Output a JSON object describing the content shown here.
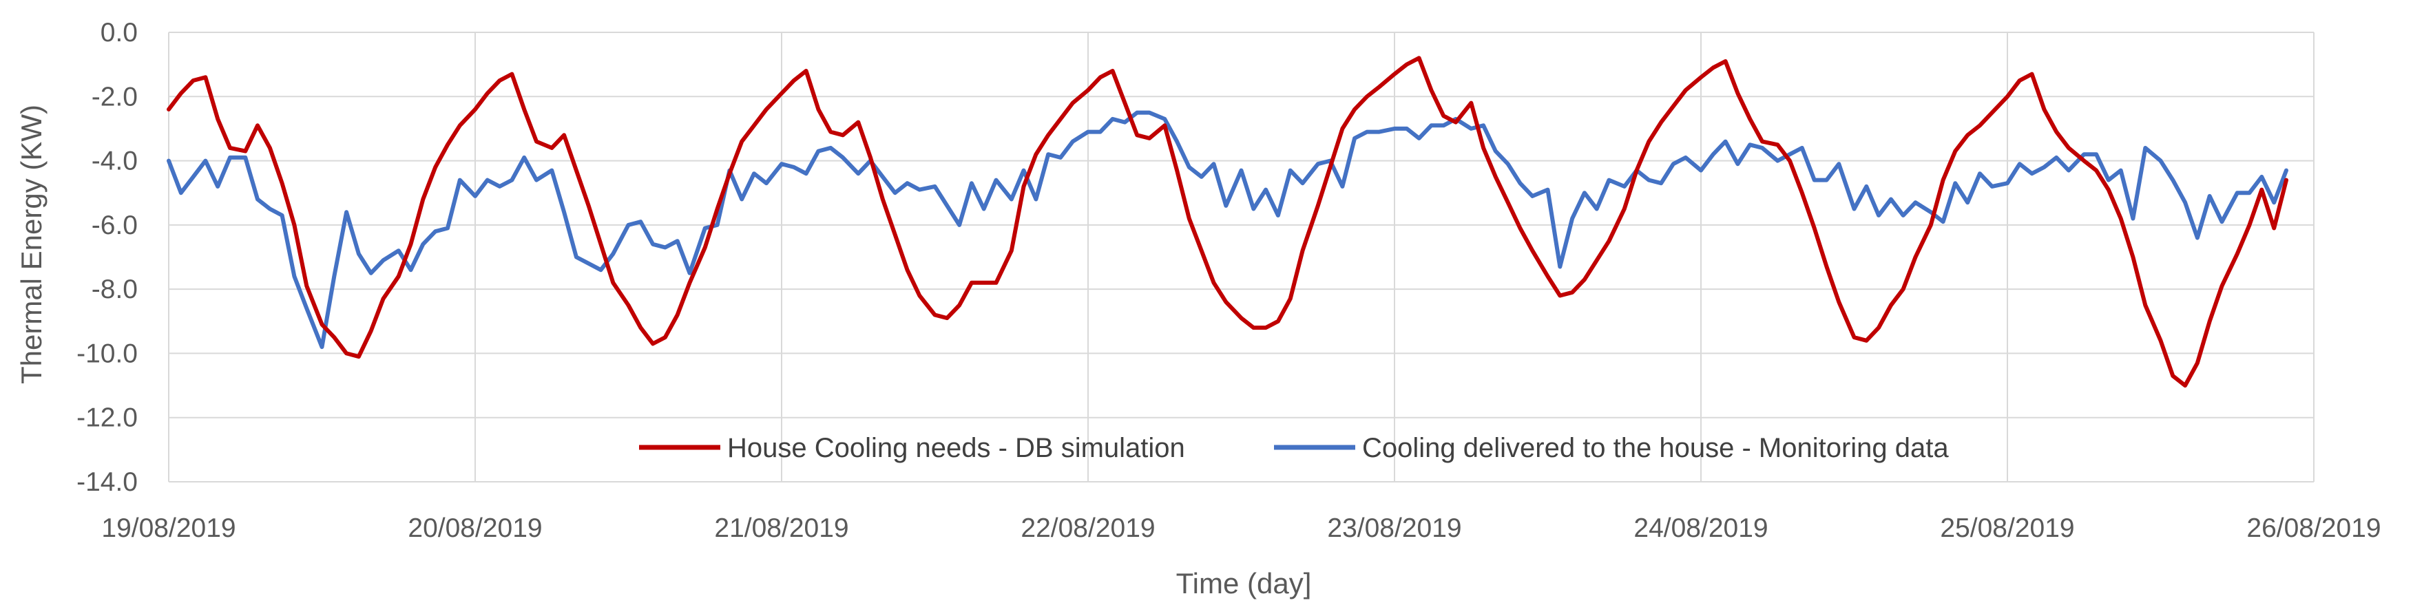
{
  "chart_data": {
    "type": "line",
    "title": "",
    "xlabel": "Time (day]",
    "ylabel": "Thermal Energy (KW)",
    "ylim": [
      -14.0,
      0.0
    ],
    "y_ticks": [
      "0.0",
      "-2.0",
      "-4.0",
      "-6.0",
      "-8.0",
      "-10.0",
      "-12.0",
      "-14.0"
    ],
    "y_tick_values": [
      0,
      -2,
      -4,
      -6,
      -8,
      -10,
      -12,
      -14
    ],
    "xlim": [
      0,
      7
    ],
    "x_tick_labels": [
      "19/08/2019",
      "20/08/2019",
      "21/08/2019",
      "22/08/2019",
      "23/08/2019",
      "24/08/2019",
      "25/08/2019",
      "26/08/2019"
    ],
    "x_tick_values": [
      0,
      1,
      2,
      3,
      4,
      5,
      6,
      7
    ],
    "grid": true,
    "legend_position": "bottom-center",
    "series": [
      {
        "name": "House Cooling needs - DB simulation",
        "color": "#C00000",
        "x": [
          0.0,
          0.04,
          0.08,
          0.12,
          0.16,
          0.2,
          0.25,
          0.29,
          0.33,
          0.37,
          0.41,
          0.45,
          0.5,
          0.54,
          0.58,
          0.62,
          0.66,
          0.7,
          0.75,
          0.79,
          0.83,
          0.87,
          0.91,
          0.95,
          1.0,
          1.04,
          1.08,
          1.12,
          1.16,
          1.2,
          1.25,
          1.29,
          1.33,
          1.37,
          1.41,
          1.45,
          1.5,
          1.54,
          1.58,
          1.62,
          1.66,
          1.7,
          1.75,
          1.79,
          1.83,
          1.87,
          1.91,
          1.95,
          2.0,
          2.04,
          2.08,
          2.12,
          2.16,
          2.2,
          2.25,
          2.29,
          2.33,
          2.37,
          2.41,
          2.45,
          2.5,
          2.54,
          2.58,
          2.62,
          2.66,
          2.7,
          2.75,
          2.79,
          2.83,
          2.87,
          2.91,
          2.95,
          3.0,
          3.04,
          3.08,
          3.12,
          3.16,
          3.2,
          3.25,
          3.29,
          3.33,
          3.37,
          3.41,
          3.45,
          3.5,
          3.54,
          3.58,
          3.62,
          3.66,
          3.7,
          3.75,
          3.79,
          3.83,
          3.87,
          3.91,
          3.95,
          4.0,
          4.04,
          4.08,
          4.12,
          4.16,
          4.2,
          4.25,
          4.29,
          4.33,
          4.37,
          4.41,
          4.45,
          4.5,
          4.54,
          4.58,
          4.62,
          4.66,
          4.7,
          4.75,
          4.79,
          4.83,
          4.87,
          4.91,
          4.95,
          5.0,
          5.04,
          5.08,
          5.12,
          5.16,
          5.2,
          5.25,
          5.29,
          5.33,
          5.37,
          5.41,
          5.45,
          5.5,
          5.54,
          5.58,
          5.62,
          5.66,
          5.7,
          5.75,
          5.79,
          5.83,
          5.87,
          5.91,
          5.95,
          6.0,
          6.04,
          6.08,
          6.12,
          6.16,
          6.2,
          6.25,
          6.29,
          6.33,
          6.37,
          6.41,
          6.45,
          6.5,
          6.54,
          6.58,
          6.62,
          6.66,
          6.7,
          6.75,
          6.79,
          6.83,
          6.87,
          6.91
        ],
        "values": [
          -2.4,
          -1.9,
          -1.5,
          -1.4,
          -2.7,
          -3.6,
          -3.7,
          -2.9,
          -3.6,
          -4.7,
          -6.0,
          -7.9,
          -9.1,
          -9.5,
          -10.0,
          -10.1,
          -9.3,
          -8.3,
          -7.6,
          -6.6,
          -5.2,
          -4.2,
          -3.5,
          -2.9,
          -2.4,
          -1.9,
          -1.5,
          -1.3,
          -2.4,
          -3.4,
          -3.6,
          -3.2,
          -4.3,
          -5.4,
          -6.6,
          -7.8,
          -8.5,
          -9.2,
          -9.7,
          -9.5,
          -8.8,
          -7.8,
          -6.7,
          -5.5,
          -4.4,
          -3.4,
          -2.9,
          -2.4,
          -1.9,
          -1.5,
          -1.2,
          -2.4,
          -3.1,
          -3.2,
          -2.8,
          -3.9,
          -5.2,
          -6.3,
          -7.4,
          -8.2,
          -8.8,
          -8.9,
          -8.5,
          -7.8,
          -7.8,
          -7.8,
          -6.8,
          -4.8,
          -3.8,
          -3.2,
          -2.7,
          -2.2,
          -1.8,
          -1.4,
          -1.2,
          -2.2,
          -3.2,
          -3.3,
          -2.9,
          -4.3,
          -5.8,
          -6.8,
          -7.8,
          -8.4,
          -8.9,
          -9.2,
          -9.2,
          -9.0,
          -8.3,
          -6.8,
          -5.4,
          -4.2,
          -3.0,
          -2.4,
          -2.0,
          -1.7,
          -1.3,
          -1.0,
          -0.8,
          -1.8,
          -2.6,
          -2.8,
          -2.2,
          -3.6,
          -4.5,
          -5.3,
          -6.1,
          -6.8,
          -7.6,
          -8.2,
          -8.1,
          -7.7,
          -7.1,
          -6.5,
          -5.5,
          -4.3,
          -3.4,
          -2.8,
          -2.3,
          -1.8,
          -1.4,
          -1.1,
          -0.9,
          -1.9,
          -2.7,
          -3.4,
          -3.5,
          -4.0,
          -5.0,
          -6.1,
          -7.3,
          -8.4,
          -9.5,
          -9.6,
          -9.2,
          -8.5,
          -8.0,
          -7.0,
          -6.0,
          -4.6,
          -3.7,
          -3.2,
          -2.9,
          -2.5,
          -2.0,
          -1.5,
          -1.3,
          -2.4,
          -3.1,
          -3.6,
          -4.0,
          -4.3,
          -4.9,
          -5.8,
          -7.0,
          -8.5,
          -9.6,
          -10.7,
          -11.0,
          -10.3,
          -9.0,
          -7.9,
          -6.9,
          -6.0,
          -4.9,
          -6.1,
          -4.6
        ]
      },
      {
        "name": "Cooling delivered to the house - Monitoring data",
        "color": "#4472C4",
        "x": [
          0.0,
          0.04,
          0.08,
          0.12,
          0.16,
          0.2,
          0.25,
          0.29,
          0.33,
          0.37,
          0.41,
          0.45,
          0.5,
          0.54,
          0.58,
          0.62,
          0.66,
          0.7,
          0.75,
          0.79,
          0.83,
          0.87,
          0.91,
          0.95,
          1.0,
          1.04,
          1.08,
          1.12,
          1.16,
          1.2,
          1.25,
          1.29,
          1.33,
          1.37,
          1.41,
          1.45,
          1.5,
          1.54,
          1.58,
          1.62,
          1.66,
          1.7,
          1.75,
          1.79,
          1.83,
          1.87,
          1.91,
          1.95,
          2.0,
          2.04,
          2.08,
          2.12,
          2.16,
          2.2,
          2.25,
          2.29,
          2.33,
          2.37,
          2.41,
          2.45,
          2.5,
          2.54,
          2.58,
          2.62,
          2.66,
          2.7,
          2.75,
          2.79,
          2.83,
          2.87,
          2.91,
          2.95,
          3.0,
          3.04,
          3.08,
          3.12,
          3.16,
          3.2,
          3.25,
          3.29,
          3.33,
          3.37,
          3.41,
          3.45,
          3.5,
          3.54,
          3.58,
          3.62,
          3.66,
          3.7,
          3.75,
          3.79,
          3.83,
          3.87,
          3.91,
          3.95,
          4.0,
          4.04,
          4.08,
          4.12,
          4.16,
          4.2,
          4.25,
          4.29,
          4.33,
          4.37,
          4.41,
          4.45,
          4.5,
          4.54,
          4.58,
          4.62,
          4.66,
          4.7,
          4.75,
          4.79,
          4.83,
          4.87,
          4.91,
          4.95,
          5.0,
          5.04,
          5.08,
          5.12,
          5.16,
          5.2,
          5.25,
          5.29,
          5.33,
          5.37,
          5.41,
          5.45,
          5.5,
          5.54,
          5.58,
          5.62,
          5.66,
          5.7,
          5.75,
          5.79,
          5.83,
          5.87,
          5.91,
          5.95,
          6.0,
          6.04,
          6.08,
          6.12,
          6.16,
          6.2,
          6.25,
          6.29,
          6.33,
          6.37,
          6.41,
          6.45,
          6.5,
          6.54,
          6.58,
          6.62,
          6.66,
          6.7,
          6.75,
          6.79,
          6.83,
          6.87,
          6.91
        ],
        "values": [
          -4.0,
          -5.0,
          -4.5,
          -4.0,
          -4.8,
          -3.9,
          -3.9,
          -5.2,
          -5.5,
          -5.7,
          -7.6,
          -8.6,
          -9.8,
          -7.6,
          -5.6,
          -6.9,
          -7.5,
          -7.1,
          -6.8,
          -7.4,
          -6.6,
          -6.2,
          -6.1,
          -4.6,
          -5.1,
          -4.6,
          -4.8,
          -4.6,
          -3.9,
          -4.6,
          -4.3,
          -5.6,
          -7.0,
          -7.2,
          -7.4,
          -6.9,
          -6.0,
          -5.9,
          -6.6,
          -6.7,
          -6.5,
          -7.5,
          -6.1,
          -6.0,
          -4.3,
          -5.2,
          -4.4,
          -4.7,
          -4.1,
          -4.2,
          -4.4,
          -3.7,
          -3.6,
          -3.9,
          -4.4,
          -4.0,
          -4.5,
          -5.0,
          -4.7,
          -4.9,
          -4.8,
          -5.4,
          -6.0,
          -4.7,
          -5.5,
          -4.6,
          -5.2,
          -4.3,
          -5.2,
          -3.8,
          -3.9,
          -3.4,
          -3.1,
          -3.1,
          -2.7,
          -2.8,
          -2.5,
          -2.5,
          -2.7,
          -3.4,
          -4.2,
          -4.5,
          -4.1,
          -5.4,
          -4.3,
          -5.5,
          -4.9,
          -5.7,
          -4.3,
          -4.7,
          -4.1,
          -4.0,
          -4.8,
          -3.3,
          -3.1,
          -3.1,
          -3.0,
          -3.0,
          -3.3,
          -2.9,
          -2.9,
          -2.7,
          -3.0,
          -2.9,
          -3.7,
          -4.1,
          -4.7,
          -5.1,
          -4.9,
          -7.3,
          -5.8,
          -5.0,
          -5.5,
          -4.6,
          -4.8,
          -4.3,
          -4.6,
          -4.7,
          -4.1,
          -3.9,
          -4.3,
          -3.8,
          -3.4,
          -4.1,
          -3.5,
          -3.6,
          -4.0,
          -3.8,
          -3.6,
          -4.6,
          -4.6,
          -4.1,
          -5.5,
          -4.8,
          -5.7,
          -5.2,
          -5.7,
          -5.3,
          -5.6,
          -5.9,
          -4.7,
          -5.3,
          -4.4,
          -4.8,
          -4.7,
          -4.1,
          -4.4,
          -4.2,
          -3.9,
          -4.3,
          -3.8,
          -3.8,
          -4.6,
          -4.3,
          -5.8,
          -3.6,
          -4.0,
          -4.6,
          -5.3,
          -6.4,
          -5.1,
          -5.9,
          -5.0,
          -5.0,
          -4.5,
          -5.3,
          -4.3
        ]
      }
    ]
  }
}
